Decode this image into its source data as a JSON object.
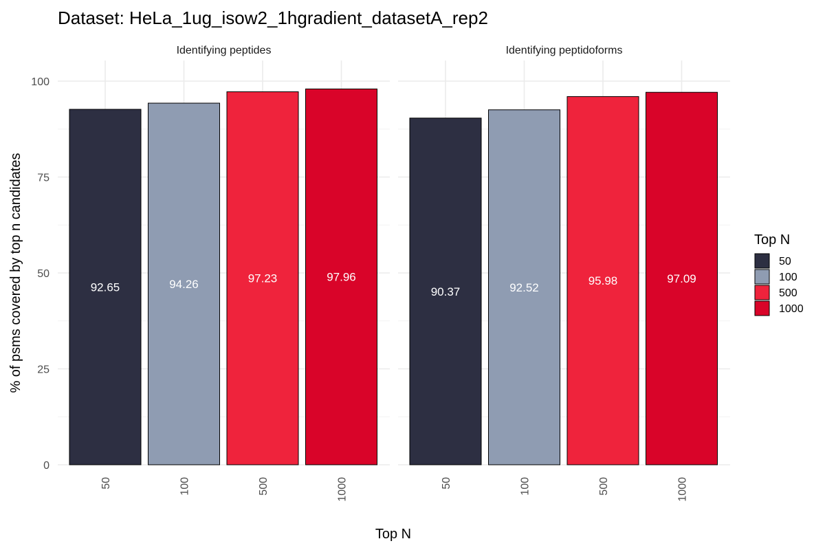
{
  "chart_data": {
    "type": "bar",
    "title": "Dataset: HeLa_1ug_isow2_1hgradient_datasetA_rep2",
    "xlabel": "Top N",
    "ylabel": "% of psms covered by top n candidates",
    "categories": [
      "50",
      "100",
      "500",
      "1000"
    ],
    "ylim": [
      0,
      100
    ],
    "yticks": [
      0,
      25,
      50,
      75,
      100
    ],
    "ytick_labels": [
      "0",
      "25",
      "50",
      "75",
      "100"
    ],
    "grid": true,
    "legend": {
      "title": "Top N",
      "position": "right",
      "entries": [
        "50",
        "100",
        "500",
        "1000"
      ]
    },
    "colors": [
      "#2d2f42",
      "#8f9cb2",
      "#ef233c",
      "#d90429"
    ],
    "panels": [
      {
        "name": "Identifying peptides",
        "values": [
          92.65,
          94.26,
          97.23,
          97.96
        ],
        "labels": [
          "92.65",
          "94.26",
          "97.23",
          "97.96"
        ]
      },
      {
        "name": "Identifying peptidoforms",
        "values": [
          90.37,
          92.52,
          95.98,
          97.09
        ],
        "labels": [
          "90.37",
          "92.52",
          "95.98",
          "97.09"
        ]
      }
    ]
  }
}
